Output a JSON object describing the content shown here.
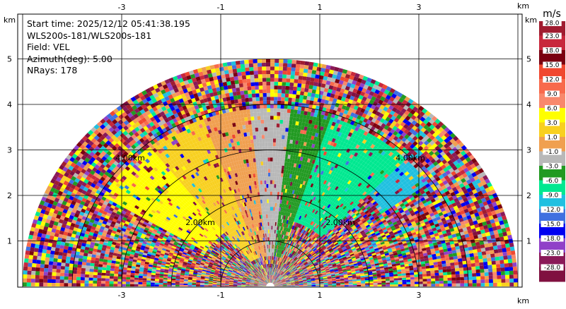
{
  "info": {
    "line1": "Start time: 2025/12/12 05:41:38.195",
    "line2": "WLS200s-181/WLS200s-181",
    "line3": "Field: VEL",
    "line4": "Azimuth(deg): 5.00",
    "line5": "NRays: 178"
  },
  "chart_data": {
    "type": "heatmap",
    "projection": "RHI half-disc (range-height)",
    "x_unit": "km",
    "y_unit": "km",
    "x_ticks": [
      -3,
      -1,
      1,
      3
    ],
    "x_tick_labels": [
      "-3",
      "-1",
      "1",
      "3"
    ],
    "y_ticks": [
      1,
      2,
      3,
      4,
      5
    ],
    "y_tick_labels": [
      "1",
      "2",
      "3",
      "4",
      "5"
    ],
    "xlim": [
      -5.0,
      5.0
    ],
    "ylim": [
      0.0,
      5.9
    ],
    "max_range_km": 5.0,
    "range_rings": [
      {
        "radius": 2.0,
        "label": "2.00km"
      },
      {
        "radius": 4.0,
        "label": "4.00km"
      }
    ],
    "grid": true,
    "colorbar": {
      "unit": "m/s",
      "placement": "right",
      "labels": [
        "28.0",
        "23.0",
        "18.0",
        "15.0",
        "12.0",
        "9.0",
        "6.0",
        "3.0",
        "1.0",
        "-1.0",
        "-3.0",
        "-6.0",
        "-9.0",
        "-12.0",
        "-15.0",
        "-18.0",
        "-23.0",
        "-28.0"
      ],
      "colors": [
        "#a01c30",
        "#c8283c",
        "#7a0010",
        "#f04830",
        "#f86a4c",
        "#f8886c",
        "#ffff00",
        "#f8d020",
        "#f0a050",
        "#b8b8b8",
        "#229a22",
        "#00e890",
        "#20c0e0",
        "#4070e0",
        "#0000f0",
        "#9040c8",
        "#8a1a58",
        "#801040"
      ]
    },
    "dominant_features": [
      {
        "name": "near-zero band",
        "field": "VEL",
        "approx_value": "-1.0 to 1.0",
        "elevation_deg": 90
      },
      {
        "name": "positive band left",
        "field": "VEL",
        "approx_value": "3.0 to 9.0",
        "elevation_deg": 140
      },
      {
        "name": "negative band right",
        "field": "VEL",
        "approx_value": "-6.0 to -3.0",
        "elevation_deg": 55
      }
    ]
  }
}
